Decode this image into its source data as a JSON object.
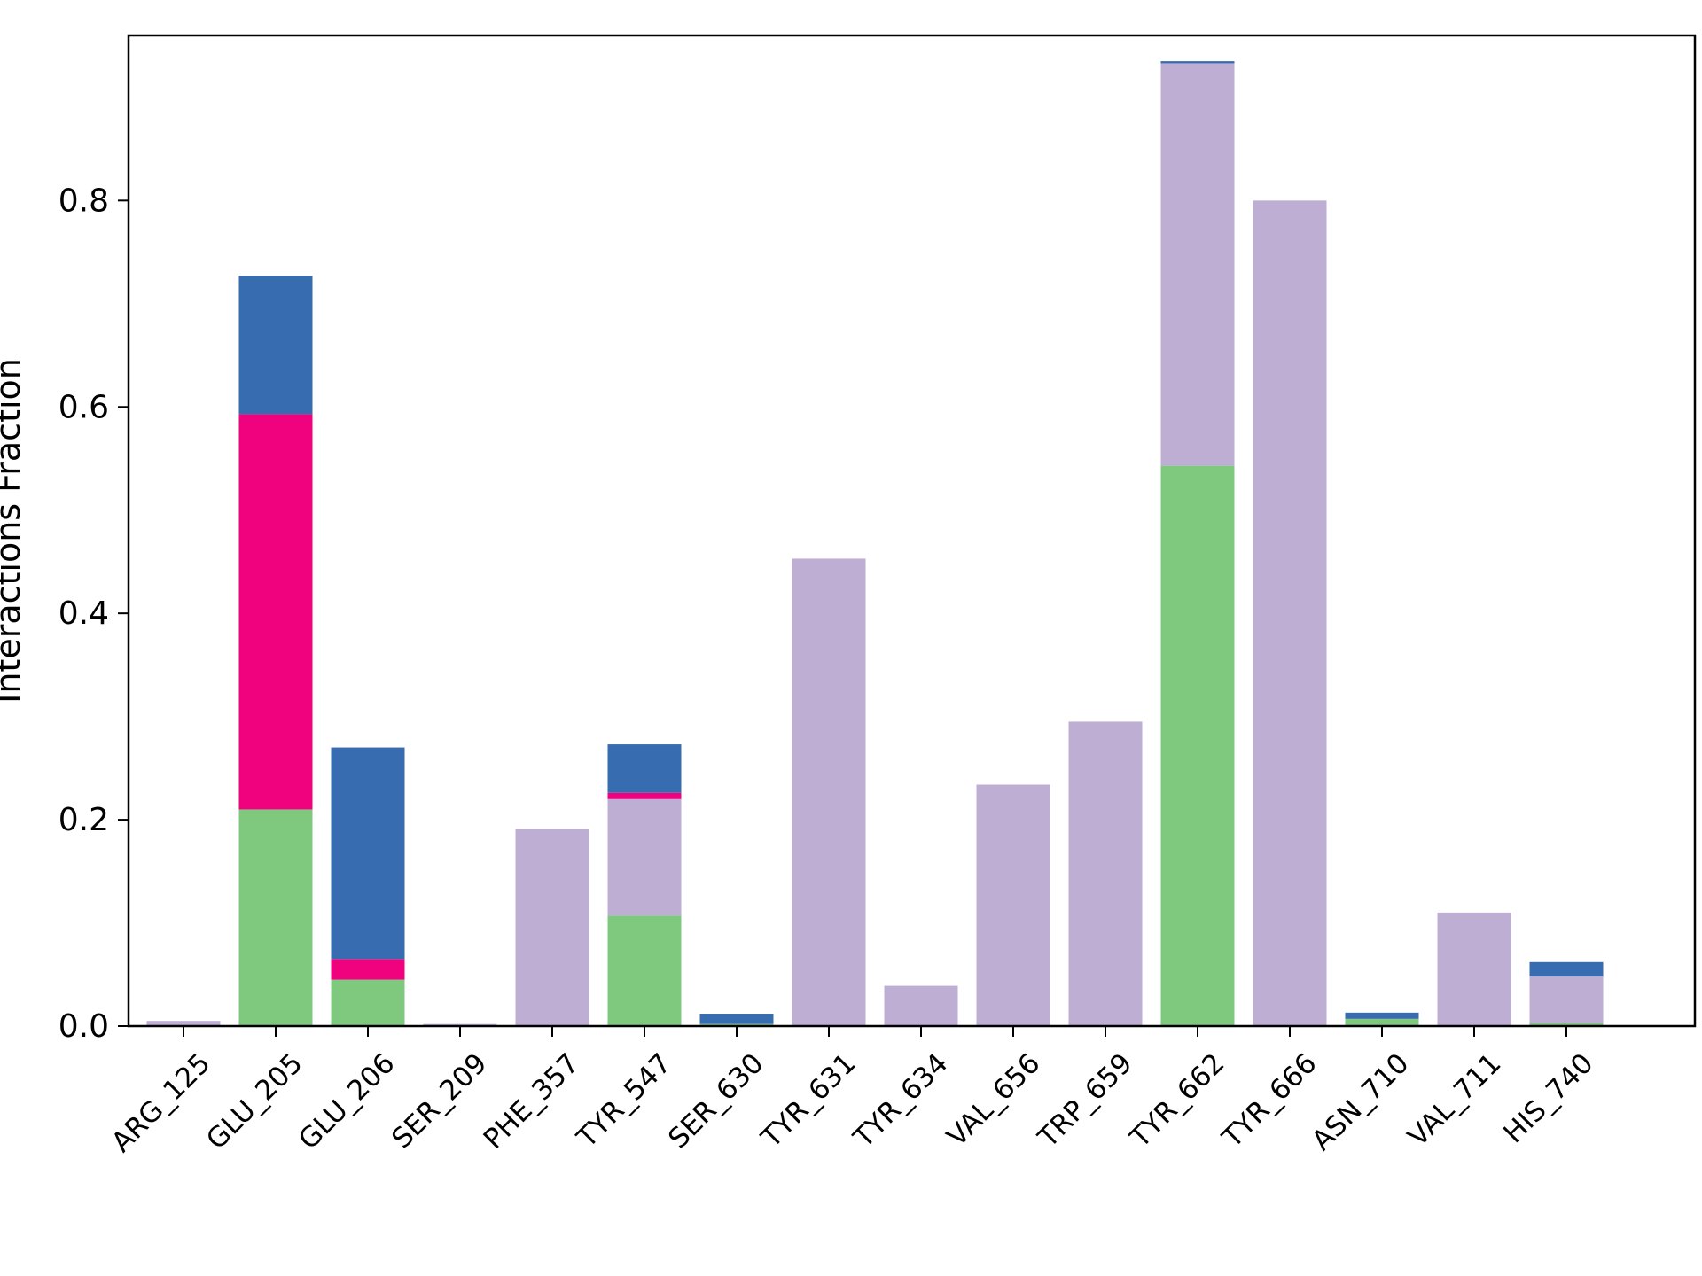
{
  "chart_data": {
    "type": "bar",
    "stacked": true,
    "ylabel": "Interactions Fraction",
    "xlabel": "",
    "title": "",
    "ylim": [
      0,
      0.96
    ],
    "yticks": [
      0.0,
      0.2,
      0.4,
      0.6,
      0.8
    ],
    "ytick_labels": [
      "0.0",
      "0.2",
      "0.4",
      "0.6",
      "0.8"
    ],
    "grid": false,
    "legend": "none",
    "categories": [
      "ARG_125",
      "GLU_205",
      "GLU_206",
      "SER_209",
      "PHE_357",
      "TYR_547",
      "SER_630",
      "TYR_631",
      "TYR_634",
      "VAL_656",
      "TRP_659",
      "TYR_662",
      "TYR_666",
      "ASN_710",
      "VAL_711",
      "HIS_740"
    ],
    "series": [
      {
        "color": "#7fc97f",
        "values": [
          0.0,
          0.21,
          0.045,
          0.0,
          0.0,
          0.107,
          0.002,
          0.0,
          0.0,
          0.0,
          0.0,
          0.543,
          0.0,
          0.007,
          0.0,
          0.003
        ]
      },
      {
        "color": "#beaed4",
        "values": [
          0.005,
          0.0,
          0.0,
          0.002,
          0.191,
          0.113,
          0.0,
          0.453,
          0.039,
          0.234,
          0.295,
          0.39,
          0.8,
          0.0,
          0.11,
          0.045
        ]
      },
      {
        "color": "#f0027f",
        "values": [
          0.0,
          0.383,
          0.02,
          0.0,
          0.0,
          0.006,
          0.0,
          0.0,
          0.0,
          0.0,
          0.0,
          0.0,
          0.0,
          0.0,
          0.0,
          0.0
        ]
      },
      {
        "color": "#386cb0",
        "values": [
          0.0,
          0.134,
          0.205,
          0.0,
          0.0,
          0.047,
          0.01,
          0.0,
          0.0,
          0.0,
          0.0,
          0.002,
          0.0,
          0.006,
          0.0,
          0.014
        ]
      }
    ]
  }
}
